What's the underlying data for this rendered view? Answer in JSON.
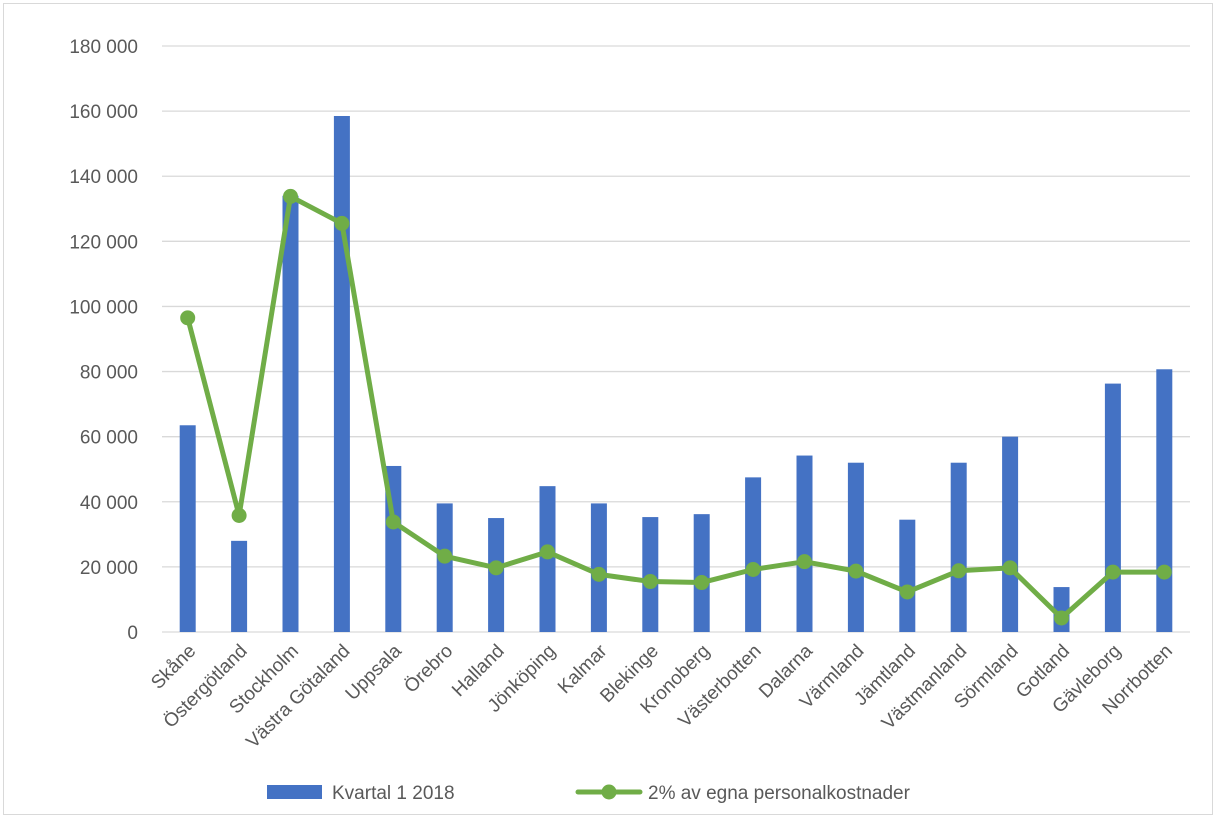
{
  "chart_data": {
    "type": "bar",
    "categories": [
      "Skåne",
      "Östergötland",
      "Stockholm",
      "Västra Götaland",
      "Uppsala",
      "Örebro",
      "Halland",
      "Jönköping",
      "Kalmar",
      "Blekinge",
      "Kronoberg",
      "Västerbotten",
      "Dalarna",
      "Värmland",
      "Jämtland",
      "Västmanland",
      "Sörmland",
      "Gotland",
      "Gävleborg",
      "Norrbotten"
    ],
    "series": [
      {
        "name": "Kvartal 1 2018",
        "kind": "bar",
        "color": "#4472c4",
        "values": [
          63500,
          28000,
          134000,
          158500,
          51000,
          39500,
          35000,
          44800,
          39500,
          35300,
          36200,
          47500,
          54200,
          52000,
          34500,
          52000,
          60000,
          13800,
          76300,
          80700
        ]
      },
      {
        "name": "2% av egna personalkostnader",
        "kind": "line",
        "color": "#70ad47",
        "values": [
          96500,
          35800,
          133800,
          125500,
          33800,
          23300,
          19700,
          24600,
          17700,
          15500,
          15200,
          19200,
          21600,
          18700,
          12300,
          18800,
          19700,
          4300,
          18400,
          18400
        ]
      }
    ],
    "ylim": [
      0,
      180000
    ],
    "yticks": [
      {
        "value": 0,
        "label": "0"
      },
      {
        "value": 20000,
        "label": "20 000"
      },
      {
        "value": 40000,
        "label": "40 000"
      },
      {
        "value": 60000,
        "label": "60 000"
      },
      {
        "value": 80000,
        "label": "80 000"
      },
      {
        "value": 100000,
        "label": "100 000"
      },
      {
        "value": 120000,
        "label": "120 000"
      },
      {
        "value": 140000,
        "label": "140 000"
      },
      {
        "value": 160000,
        "label": "160 000"
      },
      {
        "value": 180000,
        "label": "180 000"
      }
    ],
    "grid": true,
    "legend_position": "bottom",
    "gridline_color": "#d9d9d9",
    "text_color": "#595959"
  }
}
